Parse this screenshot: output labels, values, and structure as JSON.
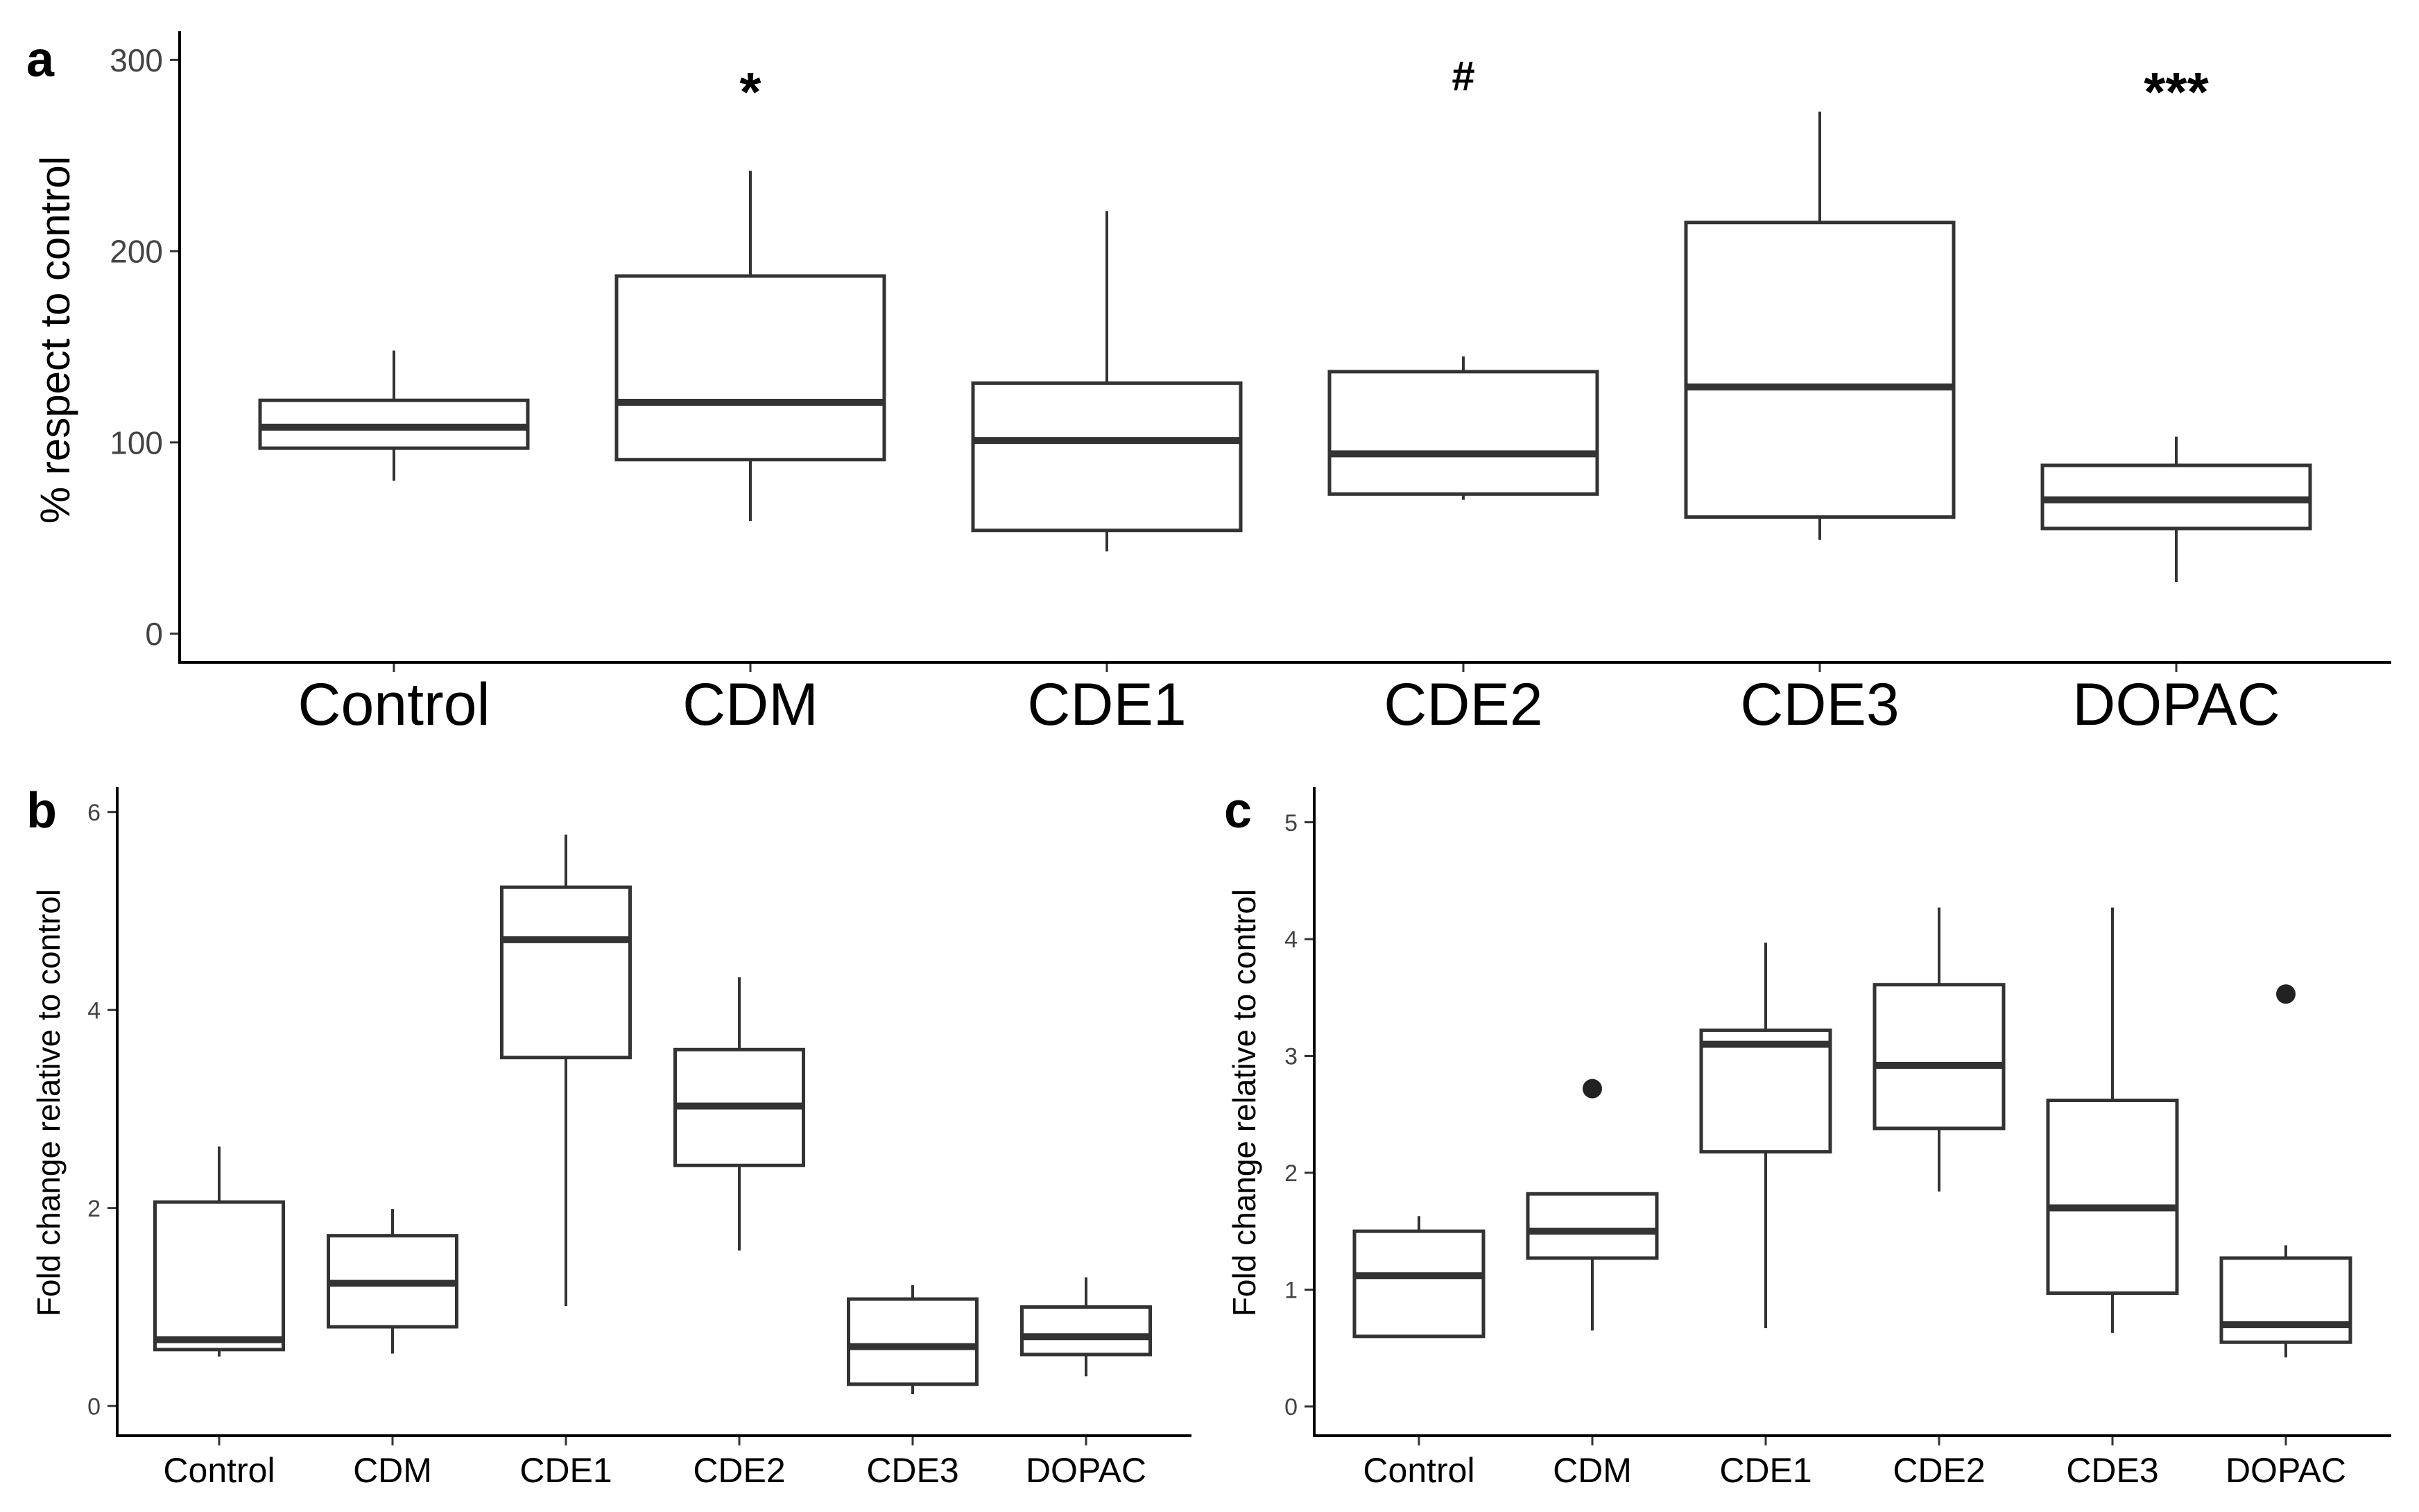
{
  "chart_data": [
    {
      "panel": "a",
      "type": "box",
      "title": "",
      "xlabel": "",
      "ylabel": "% respect to control",
      "ylim": [
        -15,
        315
      ],
      "yticks": [
        0,
        100,
        200,
        300
      ],
      "categories": [
        "Control",
        "CDM",
        "CDE1",
        "CDE2",
        "CDE3",
        "DOPAC"
      ],
      "boxes": [
        {
          "min": 80,
          "q1": 97,
          "median": 108,
          "q3": 122,
          "max": 148
        },
        {
          "min": 59,
          "q1": 91,
          "median": 121,
          "q3": 187,
          "max": 242
        },
        {
          "min": 43,
          "q1": 54,
          "median": 101,
          "q3": 131,
          "max": 221
        },
        {
          "min": 70,
          "q1": 73,
          "median": 94,
          "q3": 137,
          "max": 145
        },
        {
          "min": 49,
          "q1": 61,
          "median": 129,
          "q3": 215,
          "max": 273
        },
        {
          "min": 27,
          "q1": 55,
          "median": 70,
          "q3": 88,
          "max": 103
        }
      ],
      "annotations": [
        "",
        "*",
        "",
        "#",
        "",
        "***"
      ]
    },
    {
      "panel": "b",
      "type": "box",
      "title": "",
      "xlabel": "",
      "ylabel": "Fold change relative to control",
      "ylim": [
        -0.3,
        6.25
      ],
      "yticks": [
        0,
        2,
        4,
        6
      ],
      "categories": [
        "Control",
        "CDM",
        "CDE1",
        "CDE2",
        "CDE3",
        "DOPAC"
      ],
      "boxes": [
        {
          "min": 0.5,
          "q1": 0.57,
          "median": 0.67,
          "q3": 2.06,
          "max": 2.62
        },
        {
          "min": 0.53,
          "q1": 0.8,
          "median": 1.24,
          "q3": 1.72,
          "max": 1.99
        },
        {
          "min": 1.01,
          "q1": 3.52,
          "median": 4.71,
          "q3": 5.24,
          "max": 5.77
        },
        {
          "min": 1.57,
          "q1": 2.43,
          "median": 3.03,
          "q3": 3.6,
          "max": 4.33
        },
        {
          "min": 0.12,
          "q1": 0.22,
          "median": 0.6,
          "q3": 1.08,
          "max": 1.22
        },
        {
          "min": 0.3,
          "q1": 0.52,
          "median": 0.7,
          "q3": 1.0,
          "max": 1.3
        }
      ]
    },
    {
      "panel": "c",
      "type": "box",
      "title": "",
      "xlabel": "",
      "ylabel": "Fold change relative to control",
      "ylim": [
        -0.25,
        5.3
      ],
      "yticks": [
        0,
        1,
        2,
        3,
        4,
        5
      ],
      "categories": [
        "Control",
        "CDM",
        "CDE1",
        "CDE2",
        "CDE3",
        "DOPAC"
      ],
      "boxes": [
        {
          "min": 0.6,
          "q1": 0.6,
          "median": 1.12,
          "q3": 1.5,
          "max": 1.63,
          "outliers": []
        },
        {
          "min": 0.65,
          "q1": 1.27,
          "median": 1.5,
          "q3": 1.82,
          "max": 1.82,
          "outliers": [
            2.72
          ]
        },
        {
          "min": 0.67,
          "q1": 2.18,
          "median": 3.1,
          "q3": 3.22,
          "max": 3.97,
          "outliers": []
        },
        {
          "min": 1.84,
          "q1": 2.38,
          "median": 2.92,
          "q3": 3.61,
          "max": 4.27,
          "outliers": []
        },
        {
          "min": 0.63,
          "q1": 0.97,
          "median": 1.7,
          "q3": 2.62,
          "max": 4.27,
          "outliers": []
        },
        {
          "min": 0.42,
          "q1": 0.55,
          "median": 0.7,
          "q3": 1.27,
          "max": 1.38,
          "outliers": [
            3.53
          ]
        }
      ]
    }
  ]
}
